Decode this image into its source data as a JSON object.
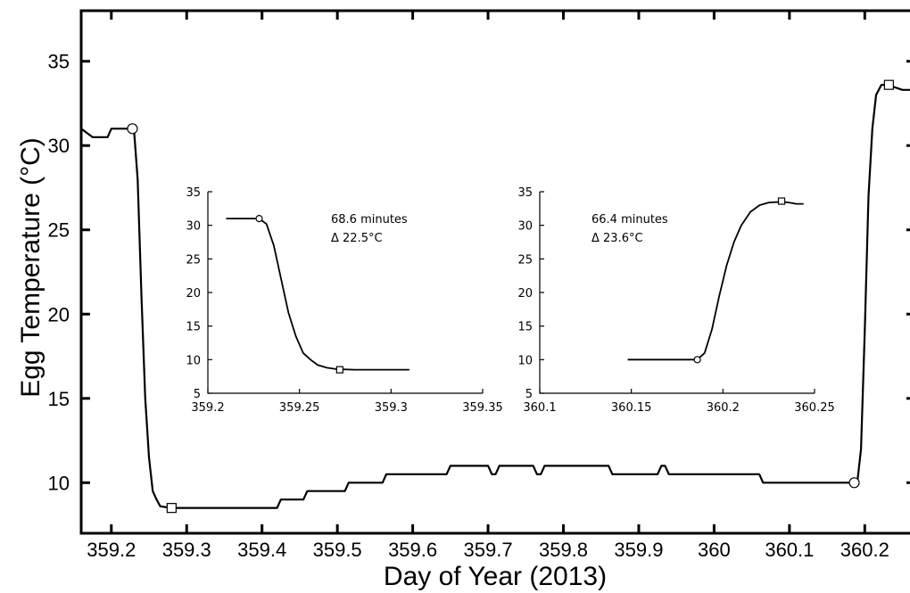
{
  "chart_data": [
    {
      "type": "line",
      "title": "",
      "xlabel": "Day of Year (2013)",
      "ylabel": "Egg Temperature (°C)",
      "xlim": [
        359.16,
        360.26
      ],
      "ylim": [
        7,
        38
      ],
      "xticks": [
        359.2,
        359.3,
        359.4,
        359.5,
        359.6,
        359.7,
        359.8,
        359.9,
        360,
        360.1,
        360.2
      ],
      "xtick_labels": [
        "359.2",
        "359.3",
        "359.4",
        "359.5",
        "359.6",
        "359.7",
        "359.8",
        "359.9",
        "360",
        "360.1",
        "360.2"
      ],
      "yticks": [
        10,
        15,
        20,
        25,
        30,
        35
      ],
      "ytick_labels": [
        "10",
        "15",
        "20",
        "25",
        "30",
        "35"
      ],
      "series": [
        {
          "x": [
            359.16,
            359.175,
            359.18,
            359.195,
            359.2,
            359.23,
            359.235,
            359.24,
            359.245,
            359.25,
            359.255,
            359.26,
            359.265,
            359.28,
            359.3,
            359.32,
            359.4,
            359.42,
            359.425,
            359.44,
            359.455,
            359.46,
            359.5,
            359.51,
            359.515,
            359.55,
            359.56,
            359.565,
            359.6,
            359.645,
            359.65,
            359.69,
            359.7,
            359.705,
            359.71,
            359.715,
            359.75,
            359.76,
            359.765,
            359.77,
            359.775,
            359.85,
            359.86,
            359.865,
            359.92,
            359.925,
            359.93,
            359.935,
            359.94,
            359.945,
            360.06,
            360.065,
            360.07,
            360.185,
            360.19,
            360.195,
            360.2,
            360.205,
            360.21,
            360.215,
            360.222,
            360.23,
            360.25,
            360.26
          ],
          "y": [
            31,
            30.5,
            30.5,
            30.5,
            31,
            31,
            28,
            21,
            15,
            11.5,
            9.5,
            9,
            8.6,
            8.5,
            8.5,
            8.5,
            8.5,
            8.5,
            9,
            9,
            9,
            9.5,
            9.5,
            9.5,
            10,
            10,
            10,
            10.5,
            10.5,
            10.5,
            11,
            11,
            11,
            10.5,
            10.5,
            11,
            11,
            11,
            10.5,
            10.5,
            11,
            11,
            11,
            10.5,
            10.5,
            10.5,
            11,
            11,
            10.5,
            10.5,
            10.5,
            10,
            10,
            10,
            10,
            12,
            19,
            27,
            31,
            33,
            33.6,
            33.6,
            33.3,
            33.3
          ]
        }
      ],
      "markers": [
        {
          "shape": "circle",
          "x": 359.228,
          "y": 31
        },
        {
          "shape": "square",
          "x": 359.28,
          "y": 8.5
        },
        {
          "shape": "circle",
          "x": 360.186,
          "y": 10
        },
        {
          "shape": "square",
          "x": 360.232,
          "y": 33.6
        }
      ]
    },
    {
      "type": "line",
      "title": "",
      "xlim": [
        359.2,
        359.35
      ],
      "ylim": [
        5,
        35
      ],
      "xticks": [
        359.2,
        359.25,
        359.3,
        359.35
      ],
      "xtick_labels": [
        "359.2",
        "359.25",
        "359.3",
        "359.35"
      ],
      "yticks": [
        5,
        10,
        15,
        20,
        25,
        30,
        35
      ],
      "ytick_labels": [
        "5",
        "10",
        "15",
        "20",
        "25",
        "30",
        "35"
      ],
      "annotation": [
        "68.6 minutes",
        "Δ 22.5°C"
      ],
      "series": [
        {
          "x": [
            359.21,
            359.228,
            359.232,
            359.236,
            359.24,
            359.244,
            359.248,
            359.252,
            359.256,
            359.26,
            359.265,
            359.27,
            359.28,
            359.31
          ],
          "y": [
            31,
            31,
            30.2,
            27,
            22,
            17,
            13.5,
            11,
            10,
            9.2,
            8.8,
            8.6,
            8.5,
            8.5
          ]
        }
      ],
      "markers": [
        {
          "shape": "circle",
          "x": 359.228,
          "y": 31
        },
        {
          "shape": "square",
          "x": 359.272,
          "y": 8.5
        }
      ]
    },
    {
      "type": "line",
      "title": "",
      "xlim": [
        360.1,
        360.25
      ],
      "ylim": [
        5,
        35
      ],
      "xticks": [
        360.1,
        360.15,
        360.2,
        360.25
      ],
      "xtick_labels": [
        "360.1",
        "360.15",
        "360.2",
        "360.25"
      ],
      "yticks": [
        5,
        10,
        15,
        20,
        25,
        30,
        35
      ],
      "ytick_labels": [
        "5",
        "10",
        "15",
        "20",
        "25",
        "30",
        "35"
      ],
      "annotation": [
        "66.4 minutes",
        "Δ 23.6°C"
      ],
      "series": [
        {
          "x": [
            360.148,
            360.186,
            360.19,
            360.194,
            360.198,
            360.202,
            360.206,
            360.21,
            360.215,
            360.22,
            360.225,
            360.232,
            360.236,
            360.24,
            360.244
          ],
          "y": [
            10,
            10,
            11,
            14.5,
            19.5,
            24,
            27.5,
            30,
            32,
            33,
            33.4,
            33.5,
            33.4,
            33.2,
            33.2
          ]
        }
      ],
      "markers": [
        {
          "shape": "circle",
          "x": 360.186,
          "y": 10
        },
        {
          "shape": "square",
          "x": 360.232,
          "y": 33.6
        }
      ]
    }
  ]
}
